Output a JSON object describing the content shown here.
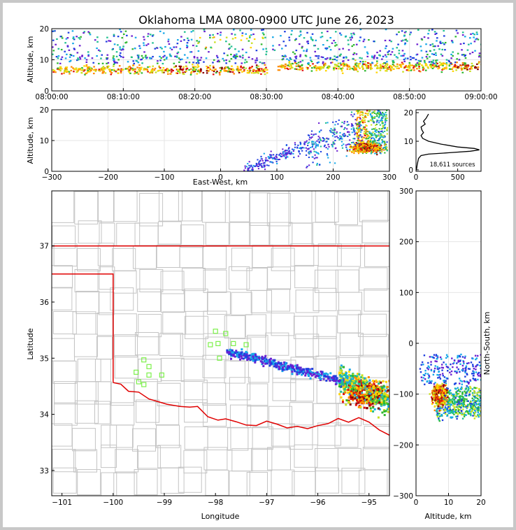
{
  "title": "Oklahoma LMA 0800-0900 UTC June 26, 2023",
  "chart_data": [
    {
      "id": "time_height",
      "type": "heatmap",
      "x_ticks": [
        "08:00:00",
        "08:10:00",
        "08:20:00",
        "08:30:00",
        "08:40:00",
        "08:50:00",
        "09:00:00"
      ],
      "xlim": [
        0,
        60
      ],
      "ylabel": "Altitude, km",
      "y_ticks": [
        0,
        10,
        20
      ],
      "ylim": [
        0,
        20
      ],
      "density_bands": [
        {
          "t_start": 0,
          "t_end": 30,
          "alt_center": 7,
          "intensity": 0.9
        },
        {
          "t_start": 31,
          "t_end": 60,
          "alt_center": 8,
          "intensity": 0.8
        },
        {
          "t_start": 0,
          "t_end": 60,
          "alt_center": 16,
          "intensity": 0.3
        }
      ],
      "grid": true
    },
    {
      "id": "east_west_altitude",
      "type": "heatmap",
      "xlabel": "East-West, km",
      "x_ticks": [
        -300,
        -200,
        -100,
        0,
        100,
        200,
        300
      ],
      "xlim": [
        -300,
        300
      ],
      "ylabel": "Altitude, km",
      "y_ticks": [
        0,
        10,
        20
      ],
      "ylim": [
        0,
        20
      ],
      "core": {
        "x": 260,
        "alt": 8
      },
      "grid": true
    },
    {
      "id": "altitude_histogram",
      "type": "line",
      "x_ticks": [
        0,
        500
      ],
      "xlim": [
        0,
        780
      ],
      "y_ticks": [
        0,
        10,
        20
      ],
      "ylim": [
        -0.5,
        21
      ],
      "annotation": "18,611 sources",
      "profile": [
        {
          "count": 5,
          "alt": 0
        },
        {
          "count": 15,
          "alt": 2
        },
        {
          "count": 30,
          "alt": 4
        },
        {
          "count": 60,
          "alt": 5
        },
        {
          "count": 150,
          "alt": 5.5
        },
        {
          "count": 400,
          "alt": 6.0
        },
        {
          "count": 650,
          "alt": 6.5
        },
        {
          "count": 760,
          "alt": 7.0
        },
        {
          "count": 700,
          "alt": 7.5
        },
        {
          "count": 500,
          "alt": 8.0
        },
        {
          "count": 300,
          "alt": 9.0
        },
        {
          "count": 150,
          "alt": 10.0
        },
        {
          "count": 80,
          "alt": 11.0
        },
        {
          "count": 60,
          "alt": 12.0
        },
        {
          "count": 90,
          "alt": 13.0
        },
        {
          "count": 70,
          "alt": 14.0
        },
        {
          "count": 60,
          "alt": 15.0
        },
        {
          "count": 110,
          "alt": 16.0
        },
        {
          "count": 90,
          "alt": 17.0
        },
        {
          "count": 120,
          "alt": 18.0
        },
        {
          "count": 150,
          "alt": 19.5
        }
      ]
    },
    {
      "id": "plan_view",
      "type": "heatmap",
      "xlabel": "Longitude",
      "x_ticks": [
        -101,
        -100,
        -99,
        -98,
        -97,
        -96,
        -95
      ],
      "xlim": [
        -101.2,
        -94.6
      ],
      "ylabel": "Latitude",
      "y_ticks": [
        33,
        34,
        35,
        36,
        37
      ],
      "ylim": [
        32.55,
        37.98
      ],
      "core": {
        "lon": -95.1,
        "lat": 34.4
      },
      "stations": [
        {
          "lon": -98.0,
          "lat": 35.48
        },
        {
          "lon": -97.8,
          "lat": 35.44
        },
        {
          "lon": -98.1,
          "lat": 35.24
        },
        {
          "lon": -97.95,
          "lat": 35.26
        },
        {
          "lon": -97.65,
          "lat": 35.26
        },
        {
          "lon": -97.4,
          "lat": 35.24
        },
        {
          "lon": -97.92,
          "lat": 35.0
        },
        {
          "lon": -99.4,
          "lat": 34.97
        },
        {
          "lon": -99.3,
          "lat": 34.85
        },
        {
          "lon": -99.55,
          "lat": 34.75
        },
        {
          "lon": -99.3,
          "lat": 34.7
        },
        {
          "lon": -99.05,
          "lat": 34.7
        },
        {
          "lon": -99.5,
          "lat": 34.58
        },
        {
          "lon": -99.4,
          "lat": 34.53
        }
      ]
    },
    {
      "id": "north_south_altitude",
      "type": "heatmap",
      "xlabel": "Altitude, km",
      "x_ticks": [
        0,
        10,
        20
      ],
      "xlim": [
        0,
        20
      ],
      "ylabel": "North-South, km",
      "y_ticks": [
        -300,
        -200,
        -100,
        0,
        100,
        200,
        300
      ],
      "ylim": [
        -300,
        300
      ],
      "core": {
        "alt": 7,
        "ns": -100
      },
      "grid": true
    }
  ]
}
